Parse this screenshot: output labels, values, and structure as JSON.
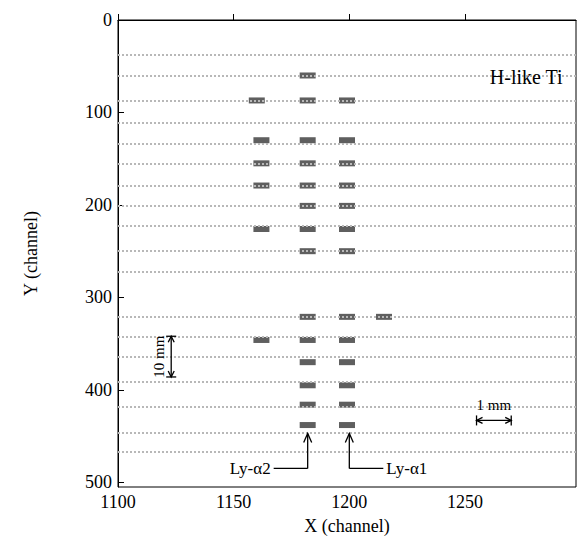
{
  "chart_data": {
    "type": "scatter",
    "title": "H-like Ti",
    "xlabel": "X (channel)",
    "ylabel": "Y (channel)",
    "xlim": [
      1100,
      1298
    ],
    "xticks": [
      1100,
      1150,
      1200,
      1250
    ],
    "ylim": [
      0,
      505
    ],
    "yticks": [
      0,
      100,
      200,
      300,
      400,
      500
    ],
    "grid": false,
    "series": [
      {
        "type": "scatter",
        "color": "#2a2a2a",
        "marker": "rect",
        "x": [
          1182,
          1160,
          1182,
          1199,
          1162,
          1182,
          1199,
          1162,
          1182,
          1199,
          1162,
          1182,
          1199,
          1182,
          1199,
          1162,
          1182,
          1199,
          1182,
          1199,
          1182,
          1199,
          1162,
          1182,
          1199,
          1182,
          1199,
          1182,
          1199,
          1182,
          1199,
          1182,
          1199,
          1215
        ],
        "values": [
          60,
          87,
          87,
          87,
          130,
          130,
          130,
          155,
          155,
          155,
          179,
          179,
          179,
          201,
          201,
          226,
          226,
          226,
          250,
          250,
          321,
          321,
          346,
          346,
          346,
          370,
          370,
          395,
          395,
          416,
          416,
          438,
          438,
          321
        ]
      },
      {
        "type": "rows",
        "color": "#b8b8b8",
        "line_style": "dotted",
        "values": [
          38,
          60,
          87,
          111,
          134,
          155,
          179,
          201,
          223,
          249,
          272,
          321,
          342,
          364,
          391,
          418,
          446,
          467
        ]
      }
    ],
    "arrows": [
      {
        "text": "Ly-α2",
        "x": 1182,
        "y": 446
      },
      {
        "text": "Ly-α1",
        "x": 1200,
        "y": 446
      }
    ],
    "scale_bars": [
      {
        "label": "10 mm",
        "x": [
          1123,
          1123
        ],
        "y": [
          342,
          386
        ]
      },
      {
        "label": "1 mm",
        "x": [
          1255,
          1270
        ],
        "y": [
          433,
          433
        ]
      }
    ]
  }
}
